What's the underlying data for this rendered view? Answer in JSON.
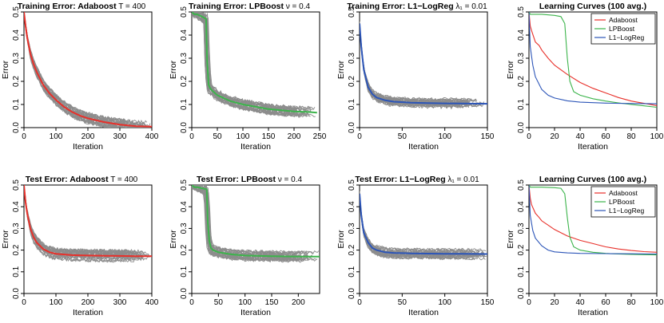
{
  "colors": {
    "adaboost": "#e8302a",
    "lpboost": "#3cb44b",
    "logreg": "#2c55b8",
    "runs": "#8c8c8c"
  },
  "chart_data": [
    {
      "type": "line",
      "kind": "runs",
      "method": "adaboost",
      "title": "Training Error: Adaboost",
      "param": "T = 400",
      "xlabel": "Iteration",
      "ylabel": "Error",
      "xlim": [
        0,
        400
      ],
      "ylim": [
        0,
        0.5
      ],
      "xticks": [
        0,
        100,
        200,
        300,
        400
      ],
      "yticks": [
        0.0,
        0.1,
        0.2,
        0.3,
        0.4,
        0.5
      ],
      "mean_curve": {
        "x": [
          0,
          5,
          10,
          20,
          30,
          40,
          60,
          80,
          100,
          125,
          150,
          175,
          200,
          250,
          300,
          350,
          400
        ],
        "y": [
          0.5,
          0.44,
          0.39,
          0.32,
          0.275,
          0.24,
          0.185,
          0.148,
          0.12,
          0.09,
          0.068,
          0.052,
          0.04,
          0.024,
          0.013,
          0.006,
          0.004
        ]
      },
      "spread": 0.02
    },
    {
      "type": "line",
      "kind": "runs",
      "method": "lpboost",
      "title": "Training Error: LPBoost",
      "param": "ν = 0.4",
      "xlabel": "Iteration",
      "ylabel": "Error",
      "xlim": [
        0,
        250
      ],
      "ylim": [
        0,
        0.5
      ],
      "xticks": [
        0,
        50,
        100,
        150,
        200,
        250
      ],
      "yticks": [
        0.0,
        0.1,
        0.2,
        0.3,
        0.4,
        0.5
      ],
      "mean_curve": {
        "x": [
          0,
          5,
          10,
          20,
          28,
          30,
          33,
          36,
          40,
          50,
          75,
          100,
          125,
          150,
          175,
          200,
          225,
          245
        ],
        "y": [
          0.5,
          0.49,
          0.49,
          0.48,
          0.47,
          0.29,
          0.185,
          0.17,
          0.16,
          0.14,
          0.115,
          0.1,
          0.09,
          0.08,
          0.075,
          0.07,
          0.068,
          0.065
        ]
      },
      "spread": 0.02
    },
    {
      "type": "line",
      "kind": "runs",
      "method": "logreg",
      "title": "Training Error: L1−LogReg",
      "param": "λ₁ = 0.01",
      "xlabel": "Iteration",
      "ylabel": "Error",
      "xlim": [
        0,
        150
      ],
      "ylim": [
        0,
        0.5
      ],
      "xticks": [
        0,
        50,
        100,
        150
      ],
      "yticks": [
        0.0,
        0.1,
        0.2,
        0.3,
        0.4,
        0.5
      ],
      "mean_curve": {
        "x": [
          0,
          2,
          5,
          10,
          15,
          20,
          30,
          40,
          60,
          80,
          100,
          120,
          150
        ],
        "y": [
          0.45,
          0.35,
          0.25,
          0.175,
          0.145,
          0.13,
          0.118,
          0.112,
          0.108,
          0.106,
          0.105,
          0.104,
          0.103
        ]
      },
      "spread": 0.018
    },
    {
      "type": "line",
      "kind": "avg",
      "title": "Learning Curves (100 avg.)",
      "xlabel": "Iteration",
      "ylabel": "Error",
      "xlim": [
        0,
        100
      ],
      "ylim": [
        0,
        0.5
      ],
      "xticks": [
        0,
        20,
        40,
        60,
        80,
        100
      ],
      "yticks": [
        0.0,
        0.1,
        0.2,
        0.3,
        0.4,
        0.5
      ],
      "legend": "top-right",
      "series": [
        {
          "name": "Adaboost",
          "method": "adaboost",
          "x": [
            0,
            1,
            2,
            5,
            8,
            10,
            15,
            20,
            30,
            40,
            50,
            60,
            70,
            80,
            90,
            100
          ],
          "y": [
            0.5,
            0.44,
            0.42,
            0.37,
            0.355,
            0.335,
            0.3,
            0.27,
            0.23,
            0.195,
            0.17,
            0.15,
            0.13,
            0.115,
            0.105,
            0.095
          ]
        },
        {
          "name": "LPBoost",
          "method": "lpboost",
          "x": [
            0,
            1,
            5,
            10,
            20,
            25,
            28,
            30,
            32,
            35,
            40,
            50,
            60,
            70,
            80,
            90,
            100
          ],
          "y": [
            0.5,
            0.49,
            0.49,
            0.49,
            0.485,
            0.48,
            0.45,
            0.3,
            0.2,
            0.155,
            0.14,
            0.125,
            0.115,
            0.107,
            0.1,
            0.094,
            0.088
          ]
        },
        {
          "name": "L1−LogReg",
          "method": "logreg",
          "x": [
            0,
            1,
            3,
            5,
            10,
            15,
            20,
            30,
            40,
            60,
            80,
            100
          ],
          "y": [
            0.5,
            0.35,
            0.27,
            0.22,
            0.165,
            0.14,
            0.128,
            0.116,
            0.11,
            0.106,
            0.104,
            0.103
          ]
        }
      ]
    },
    {
      "type": "line",
      "kind": "runs",
      "method": "adaboost",
      "title": "Test Error: Adaboost",
      "param": "T = 400",
      "xlabel": "Iteration",
      "ylabel": "Error",
      "xlim": [
        0,
        400
      ],
      "ylim": [
        0,
        0.5
      ],
      "xticks": [
        0,
        100,
        200,
        300,
        400
      ],
      "yticks": [
        0.0,
        0.1,
        0.2,
        0.3,
        0.4,
        0.5
      ],
      "mean_curve": {
        "x": [
          0,
          5,
          10,
          20,
          30,
          40,
          60,
          80,
          100,
          150,
          200,
          250,
          300,
          350,
          400
        ],
        "y": [
          0.5,
          0.42,
          0.37,
          0.3,
          0.26,
          0.235,
          0.205,
          0.19,
          0.183,
          0.177,
          0.175,
          0.174,
          0.173,
          0.172,
          0.172
        ]
      },
      "spread": 0.022
    },
    {
      "type": "line",
      "kind": "runs",
      "method": "lpboost",
      "title": "Test Error: LPBoost",
      "param": "ν = 0.4",
      "xlabel": "Iteration",
      "ylabel": "Error",
      "xlim": [
        0,
        240
      ],
      "ylim": [
        0,
        0.5
      ],
      "xticks": [
        0,
        50,
        100,
        150,
        200
      ],
      "yticks": [
        0.0,
        0.1,
        0.2,
        0.3,
        0.4,
        0.5
      ],
      "mean_curve": {
        "x": [
          0,
          5,
          10,
          20,
          28,
          30,
          33,
          36,
          40,
          50,
          75,
          100,
          150,
          200,
          240
        ],
        "y": [
          0.5,
          0.49,
          0.49,
          0.485,
          0.48,
          0.33,
          0.24,
          0.21,
          0.2,
          0.19,
          0.18,
          0.175,
          0.172,
          0.17,
          0.17
        ]
      },
      "spread": 0.02
    },
    {
      "type": "line",
      "kind": "runs",
      "method": "logreg",
      "title": "Test Error: L1−LogReg",
      "param": "λ₁ = 0.01",
      "xlabel": "Iteration",
      "ylabel": "Error",
      "xlim": [
        0,
        150
      ],
      "ylim": [
        0,
        0.5
      ],
      "xticks": [
        0,
        50,
        100,
        150
      ],
      "yticks": [
        0.0,
        0.1,
        0.2,
        0.3,
        0.4,
        0.5
      ],
      "mean_curve": {
        "x": [
          0,
          2,
          5,
          10,
          15,
          20,
          30,
          40,
          60,
          80,
          100,
          120,
          150
        ],
        "y": [
          0.46,
          0.36,
          0.28,
          0.235,
          0.21,
          0.2,
          0.19,
          0.187,
          0.185,
          0.184,
          0.183,
          0.183,
          0.182
        ]
      },
      "spread": 0.02
    },
    {
      "type": "line",
      "kind": "avg",
      "title": "Learning Curves (100 avg.)",
      "xlabel": "Iteration",
      "ylabel": "Error",
      "xlim": [
        0,
        100
      ],
      "ylim": [
        0,
        0.5
      ],
      "xticks": [
        0,
        20,
        40,
        60,
        80,
        100
      ],
      "yticks": [
        0.0,
        0.1,
        0.2,
        0.3,
        0.4,
        0.5
      ],
      "legend": "top-right",
      "series": [
        {
          "name": "Adaboost",
          "method": "adaboost",
          "x": [
            0,
            1,
            2,
            5,
            8,
            10,
            15,
            20,
            30,
            40,
            50,
            60,
            70,
            80,
            90,
            100
          ],
          "y": [
            0.5,
            0.44,
            0.41,
            0.37,
            0.35,
            0.335,
            0.315,
            0.295,
            0.265,
            0.245,
            0.23,
            0.215,
            0.205,
            0.198,
            0.193,
            0.19
          ]
        },
        {
          "name": "LPBoost",
          "method": "lpboost",
          "x": [
            0,
            1,
            5,
            10,
            20,
            25,
            28,
            30,
            32,
            35,
            40,
            50,
            60,
            70,
            80,
            90,
            100
          ],
          "y": [
            0.5,
            0.49,
            0.49,
            0.49,
            0.488,
            0.485,
            0.46,
            0.35,
            0.26,
            0.215,
            0.2,
            0.19,
            0.185,
            0.182,
            0.18,
            0.179,
            0.178
          ]
        },
        {
          "name": "L1−LogReg",
          "method": "logreg",
          "x": [
            0,
            1,
            3,
            5,
            10,
            15,
            20,
            30,
            40,
            60,
            80,
            100
          ],
          "y": [
            0.5,
            0.36,
            0.29,
            0.255,
            0.22,
            0.2,
            0.192,
            0.187,
            0.185,
            0.184,
            0.183,
            0.182
          ]
        }
      ]
    }
  ]
}
